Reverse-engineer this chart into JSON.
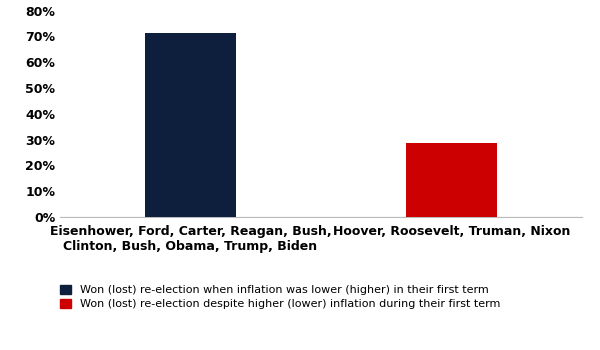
{
  "categories": [
    "Eisenhower, Ford, Carter, Reagan, Bush,\nClinton, Bush, Obama, Trump, Biden",
    "Hoover, Roosevelt, Truman, Nixon"
  ],
  "values": [
    0.714,
    0.286
  ],
  "bar_colors": [
    "#0d1f3c",
    "#cc0000"
  ],
  "x_positions": [
    1,
    3
  ],
  "xlim": [
    0,
    4
  ],
  "ylim": [
    0,
    0.8
  ],
  "yticks": [
    0.0,
    0.1,
    0.2,
    0.3,
    0.4,
    0.5,
    0.6,
    0.7,
    0.8
  ],
  "ytick_labels": [
    "0%",
    "10%",
    "20%",
    "30%",
    "40%",
    "50%",
    "60%",
    "70%",
    "80%"
  ],
  "legend_labels": [
    "Won (lost) re-election when inflation was lower (higher) in their first term",
    "Won (lost) re-election despite higher (lower) inflation during their first term"
  ],
  "legend_colors": [
    "#0d1f3c",
    "#cc0000"
  ],
  "background_color": "#ffffff",
  "bar_width": 0.7,
  "tick_fontsize": 9,
  "xtick_fontsize": 9,
  "legend_fontsize": 8
}
